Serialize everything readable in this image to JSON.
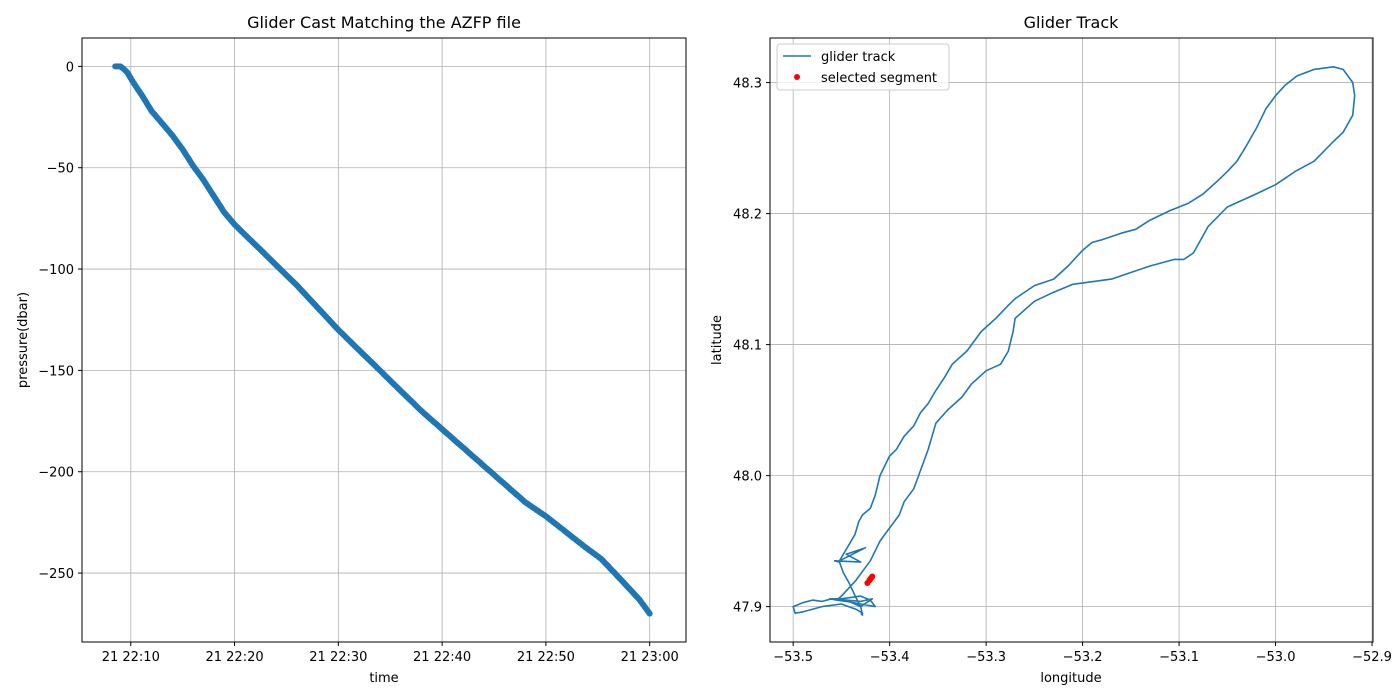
{
  "chart_data": [
    {
      "type": "scatter",
      "title": "Glider Cast Matching the AZFP file",
      "xlabel": "time",
      "ylabel": "pressure(dbar)",
      "xlim": [
        "21 22:05:18",
        "21 23:03:30"
      ],
      "ylim": [
        -284,
        14
      ],
      "xticks": [
        "21 22:10",
        "21 22:20",
        "21 22:30",
        "21 22:40",
        "21 22:50",
        "21 23:00"
      ],
      "yticks": [
        0,
        -50,
        -100,
        -150,
        -200,
        -250
      ],
      "grid": true,
      "series": [
        {
          "color": "#1f77b4",
          "x": [
            "21 22:08:30",
            "21 22:09:00",
            "21 22:09:15",
            "21 22:09:40",
            "21 22:10:15",
            "21 22:11:10",
            "21 22:12:00",
            "21 22:13:00",
            "21 22:14:00",
            "21 22:15:00",
            "21 22:16:00",
            "21 22:17:00",
            "21 22:18:00",
            "21 22:19:00",
            "21 22:20:00",
            "21 22:22:00",
            "21 22:24:00",
            "21 22:26:00",
            "21 22:28:00",
            "21 22:30:00",
            "21 22:32:00",
            "21 22:34:00",
            "21 22:36:00",
            "21 22:38:00",
            "21 22:40:00",
            "21 22:42:00",
            "21 22:44:00",
            "21 22:46:00",
            "21 22:48:00",
            "21 22:50:00",
            "21 22:52:00",
            "21 22:54:00",
            "21 22:55:20",
            "21 22:57:00",
            "21 22:59:00",
            "21 23:00:00"
          ],
          "y": [
            0,
            0,
            -1,
            -3,
            -8,
            -15,
            -22,
            -28,
            -34,
            -41,
            -49,
            -56,
            -64,
            -72,
            -78,
            -88,
            -98,
            -108,
            -119,
            -130,
            -140,
            -150,
            -160,
            -170,
            -179,
            -188,
            -197,
            -206,
            -215,
            -222,
            -230,
            -238,
            -243,
            -252,
            -263,
            -270
          ]
        }
      ]
    },
    {
      "type": "line",
      "title": "Glider Track",
      "xlabel": "longitude",
      "ylabel": "latitude",
      "xlim": [
        -53.524,
        -52.899
      ],
      "ylim": [
        47.873,
        48.334
      ],
      "xticks": [
        -53.5,
        -53.4,
        -53.3,
        -53.2,
        -53.1,
        -53.0,
        -52.9
      ],
      "yticks": [
        47.9,
        48.0,
        48.1,
        48.2,
        48.3
      ],
      "grid": true,
      "legend": "upper left",
      "series": [
        {
          "name": "glider track",
          "color": "#1f77b4",
          "lon": [
            -53.428,
            -53.43,
            -53.435,
            -53.442,
            -53.448,
            -53.452,
            -53.457,
            -53.43,
            -53.445,
            -53.425,
            -53.452,
            -53.436,
            -53.432,
            -53.428,
            -53.42,
            -53.415,
            -53.41,
            -53.4,
            -53.393,
            -53.385,
            -53.375,
            -53.368,
            -53.36,
            -53.352,
            -53.343,
            -53.335,
            -53.32,
            -53.305,
            -53.29,
            -53.277,
            -53.27,
            -53.25,
            -53.23,
            -53.215,
            -53.2,
            -53.19,
            -53.18,
            -53.16,
            -53.145,
            -53.13,
            -53.11,
            -53.09,
            -53.075,
            -53.06,
            -53.05,
            -53.04,
            -53.03,
            -53.02,
            -53.01,
            -53.0,
            -52.99,
            -52.978,
            -52.96,
            -52.94,
            -52.93,
            -52.92,
            -52.918,
            -52.92,
            -52.93,
            -52.94,
            -52.96,
            -52.98,
            -53.0,
            -53.02,
            -53.05,
            -53.07,
            -53.085,
            -53.095,
            -53.105,
            -53.13,
            -53.15,
            -53.17,
            -53.19,
            -53.21,
            -53.23,
            -53.25,
            -53.27,
            -53.272,
            -53.277,
            -53.285,
            -53.3,
            -53.315,
            -53.325,
            -53.34,
            -53.352,
            -53.36,
            -53.37,
            -53.375,
            -53.385,
            -53.39,
            -53.4,
            -53.41,
            -53.42,
            -53.425,
            -53.435,
            -53.445,
            -53.45,
            -53.455,
            -53.46,
            -53.45,
            -53.43,
            -53.42,
            -53.415,
            -53.43,
            -53.445,
            -53.455,
            -53.462,
            -53.445,
            -53.43,
            -53.418,
            -53.43,
            -53.445,
            -53.46,
            -53.47,
            -53.48,
            -53.49,
            -53.5,
            -53.498,
            -53.49,
            -53.47,
            -53.45,
            -53.435,
            -53.428,
            -53.43
          ],
          "lat": [
            47.893,
            47.9,
            47.907,
            47.918,
            47.926,
            47.934,
            47.935,
            47.934,
            47.94,
            47.945,
            47.935,
            47.955,
            47.965,
            47.97,
            47.975,
            47.985,
            48.0,
            48.015,
            48.02,
            48.03,
            48.038,
            48.048,
            48.055,
            48.065,
            48.075,
            48.085,
            48.095,
            48.11,
            48.12,
            48.13,
            48.135,
            48.145,
            48.15,
            48.16,
            48.172,
            48.178,
            48.18,
            48.185,
            48.188,
            48.195,
            48.202,
            48.208,
            48.215,
            48.225,
            48.232,
            48.24,
            48.252,
            48.265,
            48.28,
            48.29,
            48.298,
            48.305,
            48.31,
            48.312,
            48.31,
            48.3,
            48.29,
            48.275,
            48.262,
            48.255,
            48.24,
            48.232,
            48.222,
            48.215,
            48.205,
            48.19,
            48.17,
            48.165,
            48.165,
            48.16,
            48.155,
            48.15,
            48.148,
            48.146,
            48.14,
            48.133,
            48.12,
            48.11,
            48.095,
            48.085,
            48.08,
            48.07,
            48.06,
            48.05,
            48.04,
            48.02,
            48.0,
            47.99,
            47.98,
            47.97,
            47.96,
            47.95,
            47.935,
            47.93,
            47.92,
            47.912,
            47.908,
            47.905,
            47.906,
            47.906,
            47.908,
            47.905,
            47.9,
            47.902,
            47.904,
            47.905,
            47.906,
            47.905,
            47.904,
            47.906,
            47.9,
            47.905,
            47.906,
            47.904,
            47.905,
            47.903,
            47.9,
            47.895,
            47.896,
            47.9,
            47.902,
            47.898,
            47.895,
            47.894
          ]
        },
        {
          "name": "selected segment",
          "color": "#ff0000",
          "lon": [
            -53.423,
            -53.421,
            -53.42,
            -53.419,
            -53.418
          ],
          "lat": [
            47.918,
            47.92,
            47.921,
            47.922,
            47.923
          ]
        }
      ]
    }
  ]
}
